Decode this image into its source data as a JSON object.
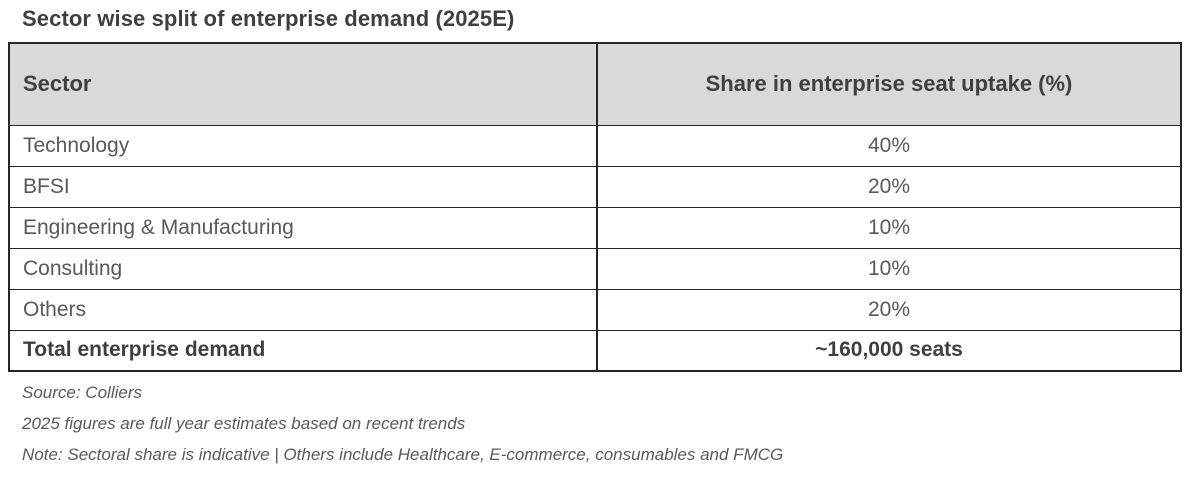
{
  "title": "Sector wise split of enterprise demand (2025E)",
  "table": {
    "columns": [
      "Sector",
      "Share in enterprise seat uptake (%)"
    ],
    "rows": [
      {
        "sector": "Technology",
        "share": "40%"
      },
      {
        "sector": "BFSI",
        "share": "20%"
      },
      {
        "sector": "Engineering & Manufacturing",
        "share": "10%"
      },
      {
        "sector": "Consulting",
        "share": "10%"
      },
      {
        "sector": "Others",
        "share": "20%"
      }
    ],
    "total": {
      "label": "Total enterprise demand",
      "value": "~160,000 seats"
    }
  },
  "footnotes": [
    "Source: Colliers",
    "2025 figures are full year estimates based on recent trends",
    "Note: Sectoral share is indicative | Others include Healthcare, E-commerce, consumables and FMCG"
  ],
  "colors": {
    "header_bg": "#d9d9d9",
    "border": "#262626",
    "heading_text": "#3f3f3f",
    "body_text": "#595959"
  },
  "chart_data": {
    "type": "table",
    "title": "Sector wise split of enterprise demand (2025E)",
    "columns": [
      "Sector",
      "Share in enterprise seat uptake (%)"
    ],
    "categories": [
      "Technology",
      "BFSI",
      "Engineering & Manufacturing",
      "Consulting",
      "Others"
    ],
    "values": [
      40,
      20,
      10,
      10,
      20
    ],
    "unit": "%",
    "total_row": {
      "label": "Total enterprise demand",
      "value": "~160,000 seats"
    },
    "source": "Colliers",
    "notes": [
      "2025 figures are full year estimates based on recent trends",
      "Sectoral share is indicative",
      "Others include Healthcare, E-commerce, consumables and FMCG"
    ]
  }
}
